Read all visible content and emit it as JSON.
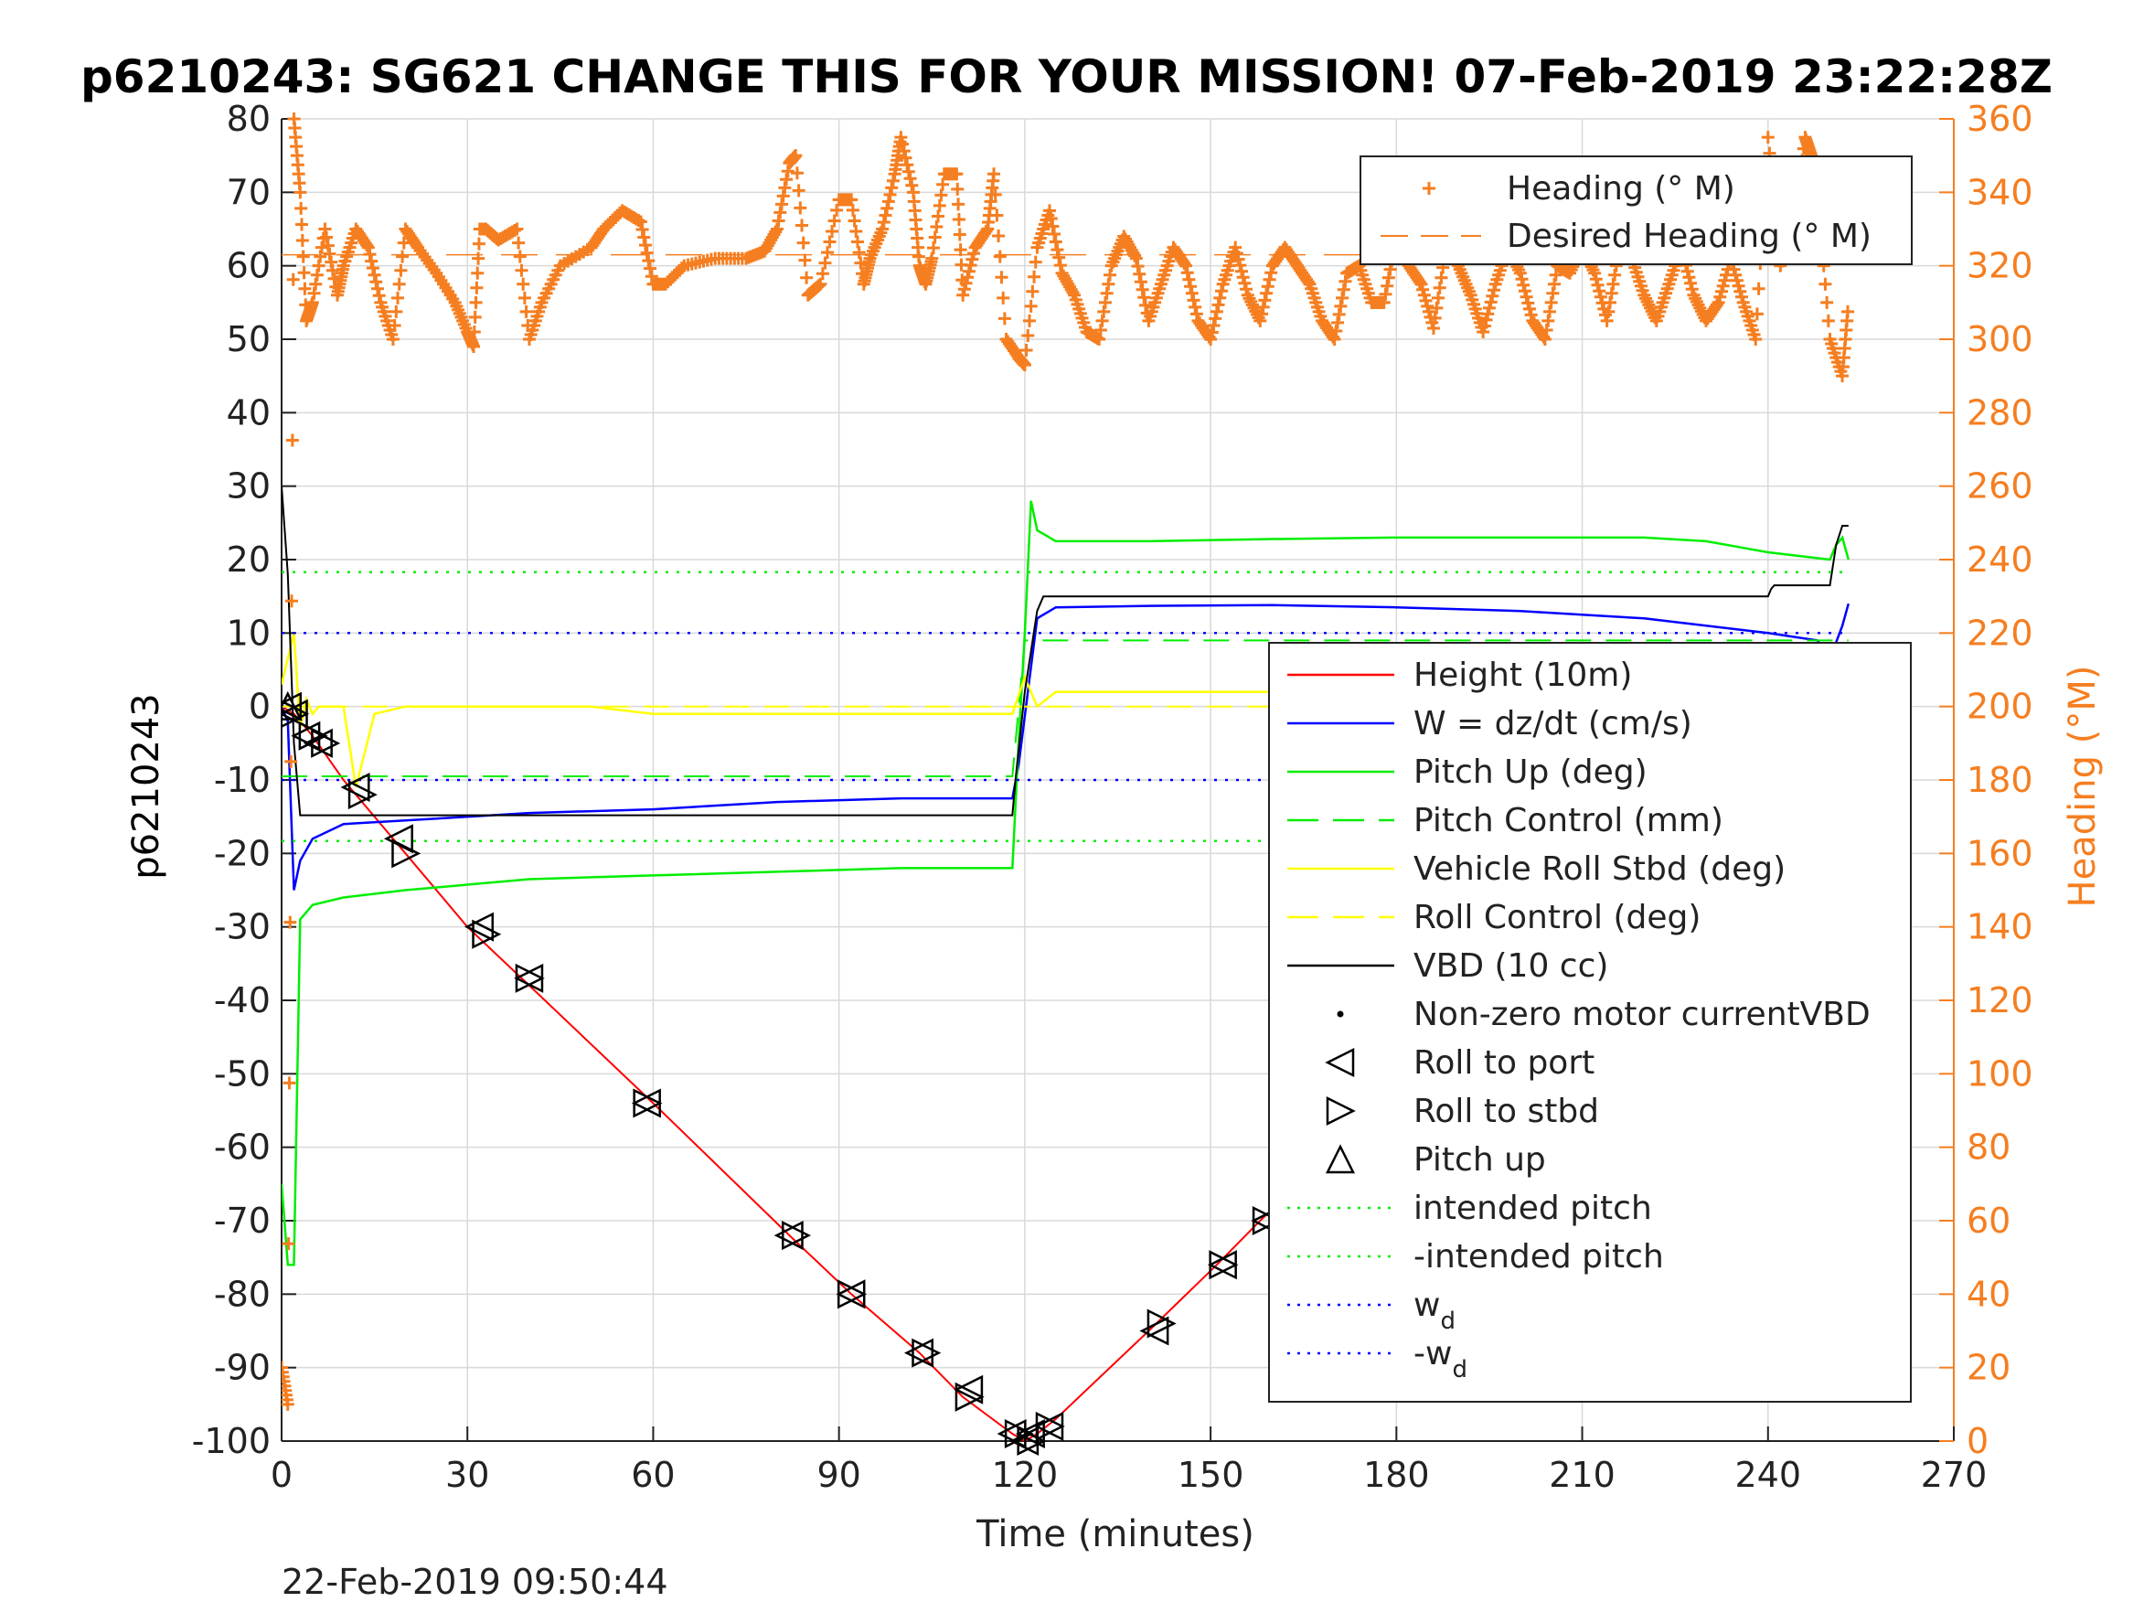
{
  "title": "p6210243: SG621 CHANGE THIS FOR YOUR MISSION! 07-Feb-2019 23:22:28Z",
  "timestamp": "22-Feb-2019 09:50:44",
  "colors": {
    "height": "#ff0000",
    "w": "#0000ff",
    "pitch": "#00ee00",
    "roll": "#ffff00",
    "vbd": "#000000",
    "heading": "#f57e20",
    "grid": "#d9d9d9",
    "markers": "#000000"
  },
  "chart_data": {
    "type": "line",
    "title": "p6210243: SG621 CHANGE THIS FOR YOUR MISSION! 07-Feb-2019 23:22:28Z",
    "xlabel": "Time (minutes)",
    "ylabel": "p6210243",
    "ylabel_right": "Heading (°M)",
    "xlim": [
      0,
      270
    ],
    "ylim": [
      -100,
      80
    ],
    "ylim_right": [
      0,
      360
    ],
    "x_ticks": [
      "0",
      "30",
      "60",
      "90",
      "120",
      "150",
      "180",
      "210",
      "240",
      "270"
    ],
    "y_ticks": [
      "80",
      "70",
      "60",
      "50",
      "40",
      "30",
      "20",
      "10",
      "0",
      "-10",
      "-20",
      "-30",
      "-40",
      "-50",
      "-60",
      "-70",
      "-80",
      "-90",
      "-100"
    ],
    "y_ticks_right": [
      "360",
      "340",
      "320",
      "300",
      "280",
      "260",
      "240",
      "220",
      "200",
      "180",
      "160",
      "140",
      "120",
      "100",
      "80",
      "60",
      "40",
      "20",
      "0"
    ],
    "grid": true,
    "legend_heading": {
      "placement": "top-right",
      "entries": [
        {
          "label": "Heading (° M)",
          "style": "plus"
        },
        {
          "label": "Desired Heading (° M)",
          "style": "dashed"
        }
      ]
    },
    "legend_main": {
      "placement": "right",
      "entries": [
        {
          "label": "Height (10m)",
          "style": "solid",
          "color": "#ff0000"
        },
        {
          "label": "W = dz/dt (cm/s)",
          "style": "solid",
          "color": "#0000ff"
        },
        {
          "label": "Pitch Up (deg)",
          "style": "solid",
          "color": "#00ee00"
        },
        {
          "label": "Pitch Control (mm)",
          "style": "dashed",
          "color": "#00ee00"
        },
        {
          "label": "Vehicle Roll Stbd (deg)",
          "style": "solid",
          "color": "#ffff00"
        },
        {
          "label": "Roll Control (deg)",
          "style": "dashed",
          "color": "#ffff00"
        },
        {
          "label": "VBD (10 cc)",
          "style": "solid",
          "color": "#000000"
        },
        {
          "label": "Non-zero motor currentVBD",
          "style": "dot",
          "color": "#000000"
        },
        {
          "label": "Roll to port",
          "style": "tri-left",
          "color": "#000000"
        },
        {
          "label": "Roll to stbd",
          "style": "tri-right",
          "color": "#000000"
        },
        {
          "label": "Pitch up",
          "style": "tri-up",
          "color": "#000000"
        },
        {
          "label": "intended pitch",
          "style": "dotted",
          "color": "#00ee00"
        },
        {
          "label": "-intended pitch",
          "style": "dotted",
          "color": "#00ee00"
        },
        {
          "label": "w",
          "sub": "d",
          "style": "dotted",
          "color": "#0000ff"
        },
        {
          "label": "-w",
          "sub": "d",
          "style": "dotted",
          "color": "#0000ff"
        }
      ]
    },
    "series": [
      {
        "name": "Height (10m)",
        "axis": "left",
        "x": [
          0,
          2,
          5,
          10,
          20,
          30,
          40,
          60,
          82,
          92,
          103,
          110,
          118,
          120,
          122,
          125,
          140,
          151,
          158,
          168,
          180,
          187,
          198,
          210,
          225,
          232,
          238,
          243,
          248,
          253
        ],
        "y": [
          0,
          -1,
          -4,
          -10,
          -20,
          -30,
          -38,
          -54,
          -72,
          -80,
          -88,
          -94,
          -99,
          -100,
          -99,
          -97,
          -85,
          -76,
          -70,
          -62,
          -53,
          -47,
          -38,
          -28,
          -18,
          -13,
          -8,
          -5,
          -2,
          0
        ]
      },
      {
        "name": "W = dz/dt (cm/s)",
        "axis": "left",
        "x": [
          0,
          1,
          2,
          3,
          5,
          10,
          20,
          30,
          40,
          60,
          80,
          100,
          118,
          119,
          122,
          125,
          140,
          160,
          180,
          200,
          220,
          240,
          248,
          250,
          252,
          253
        ],
        "y": [
          0,
          -2,
          -25,
          -21,
          -18,
          -16,
          -15.5,
          -15,
          -14.5,
          -14,
          -13,
          -12.5,
          -12.5,
          -8,
          12,
          13.5,
          13.7,
          13.8,
          13.5,
          13,
          12,
          10,
          9,
          6.5,
          11,
          14
        ]
      },
      {
        "name": "Pitch Up (deg)",
        "axis": "left",
        "x": [
          0,
          1,
          2,
          3,
          5,
          10,
          20,
          40,
          60,
          80,
          100,
          118,
          119,
          120,
          121,
          122,
          125,
          140,
          160,
          180,
          200,
          220,
          230,
          240,
          250,
          251,
          252,
          253
        ],
        "y": [
          -65,
          -76,
          -76,
          -29,
          -27,
          -26,
          -25,
          -23.5,
          -23,
          -22.5,
          -22,
          -22,
          -5,
          10,
          28,
          24,
          22.5,
          22.5,
          22.8,
          23,
          23,
          23,
          22.5,
          21,
          20,
          22,
          23,
          20
        ]
      },
      {
        "name": "Pitch Control (mm)",
        "axis": "left",
        "x": [
          0,
          3,
          118,
          120,
          123,
          253
        ],
        "y": [
          -9.5,
          -9.5,
          -9.5,
          9,
          9,
          9
        ]
      },
      {
        "name": "Vehicle Roll Stbd (deg)",
        "axis": "left",
        "x": [
          0,
          2,
          3,
          4,
          5,
          6,
          8,
          10,
          12,
          15,
          20,
          30,
          40,
          50,
          60,
          70,
          80,
          90,
          100,
          110,
          118,
          120,
          122,
          125,
          140,
          160,
          180,
          200,
          220,
          240,
          250,
          253
        ],
        "y": [
          3,
          10,
          -3,
          1,
          -1,
          0,
          0,
          0,
          -11,
          -1,
          0,
          0,
          0,
          0,
          -1,
          -1,
          -1,
          -1,
          -1,
          -1,
          -1,
          4,
          0,
          2,
          2,
          2,
          2,
          2,
          2,
          2,
          2,
          2
        ]
      },
      {
        "name": "Roll Control (deg)",
        "axis": "left",
        "x": [
          0,
          5,
          10,
          60,
          118,
          120,
          125,
          250,
          251,
          253
        ],
        "y": [
          0,
          0,
          0,
          0,
          0,
          0,
          0,
          0,
          -11,
          0
        ]
      },
      {
        "name": "VBD (10 cc)",
        "axis": "left",
        "x": [
          0,
          1,
          2,
          3,
          50,
          118,
          118.5,
          120,
          122,
          123,
          240,
          240.5,
          241,
          250,
          251,
          252,
          253
        ],
        "y": [
          30,
          18,
          -5,
          -14.8,
          -14.8,
          -14.8,
          -10,
          2,
          13,
          15,
          15,
          16,
          16.5,
          16.5,
          22,
          24.6,
          24.6
        ]
      },
      {
        "name": "intended pitch",
        "axis": "left",
        "x": [
          0,
          253
        ],
        "y": [
          18.3,
          18.3
        ]
      },
      {
        "name": "-intended pitch",
        "axis": "left",
        "x": [
          0,
          253
        ],
        "y": [
          -18.3,
          -18.3
        ]
      },
      {
        "name": "w",
        "axis": "left",
        "x": [
          0,
          253
        ],
        "y": [
          10,
          10
        ]
      },
      {
        "name": "-w",
        "axis": "left",
        "x": [
          0,
          253
        ],
        "y": [
          -10,
          -10
        ]
      },
      {
        "name": "Desired Heading (° M)",
        "axis": "right",
        "x": [
          0,
          253
        ],
        "y": [
          323,
          323
        ]
      },
      {
        "name": "Heading (° M)",
        "axis": "right",
        "x": [
          0,
          1,
          2,
          3,
          4,
          5,
          7,
          9,
          10,
          12,
          14,
          16,
          18,
          20,
          22,
          25,
          28,
          30,
          31,
          32,
          33,
          35,
          38,
          40,
          42,
          45,
          50,
          52,
          55,
          58,
          60,
          62,
          65,
          70,
          75,
          78,
          80,
          82,
          83,
          85,
          87,
          90,
          92,
          94,
          95,
          97,
          99,
          100,
          102,
          103,
          104,
          105,
          107,
          109,
          110,
          112,
          114,
          115,
          117,
          119,
          120,
          122,
          124,
          126,
          128,
          130,
          132,
          134,
          136,
          138,
          140,
          142,
          144,
          146,
          148,
          150,
          152,
          154,
          156,
          158,
          160,
          162,
          164,
          166,
          168,
          170,
          172,
          174,
          176,
          178,
          180,
          182,
          184,
          186,
          188,
          190,
          192,
          194,
          196,
          198,
          200,
          202,
          204,
          206,
          208,
          210,
          212,
          214,
          216,
          218,
          220,
          222,
          224,
          226,
          228,
          230,
          232,
          234,
          236,
          238,
          240,
          242,
          244,
          246,
          247,
          248,
          250,
          252,
          253
        ],
        "y": [
          20,
          10,
          360,
          340,
          305,
          310,
          330,
          312,
          320,
          330,
          325,
          310,
          300,
          330,
          325,
          318,
          310,
          302,
          298,
          330,
          330,
          327,
          330,
          300,
          310,
          320,
          325,
          330,
          335,
          332,
          315,
          315,
          320,
          322,
          322,
          324,
          330,
          348,
          350,
          312,
          315,
          338,
          338,
          315,
          322,
          330,
          345,
          355,
          340,
          320,
          315,
          322,
          345,
          345,
          312,
          325,
          330,
          345,
          300,
          295,
          293,
          325,
          335,
          318,
          312,
          302,
          300,
          320,
          328,
          322,
          305,
          315,
          325,
          320,
          305,
          300,
          315,
          325,
          312,
          305,
          320,
          325,
          320,
          315,
          305,
          300,
          318,
          320,
          310,
          310,
          328,
          320,
          315,
          303,
          325,
          320,
          312,
          302,
          315,
          325,
          318,
          305,
          300,
          320,
          318,
          325,
          318,
          305,
          325,
          322,
          312,
          305,
          315,
          325,
          312,
          305,
          310,
          322,
          310,
          300,
          355,
          320,
          330,
          355,
          350,
          340,
          300,
          290,
          310
        ]
      }
    ],
    "markers": {
      "roll_to_port": {
        "x": [
          1,
          2,
          4,
          6,
          12,
          19,
          32,
          40,
          59,
          82,
          92,
          103,
          111,
          118,
          120,
          121,
          124,
          141,
          152,
          159,
          169,
          181,
          188,
          198,
          211,
          225,
          231,
          235,
          239,
          244,
          249,
          253
        ],
        "y": [
          0,
          -1,
          -4,
          -5,
          -11,
          -18,
          -30,
          -37,
          -54,
          -72,
          -80,
          -88,
          -93,
          -99,
          -100,
          -99,
          -98,
          -85,
          -76,
          -70,
          -62,
          -53,
          -47,
          -39,
          -28,
          -18,
          -14,
          -11,
          -9,
          -6,
          -3,
          -1
        ]
      },
      "roll_to_stbd": {
        "x": [
          2,
          5,
          7,
          13,
          20,
          33,
          40,
          59,
          83,
          92,
          104,
          111,
          119,
          121,
          124,
          142,
          152,
          159,
          170,
          181,
          188,
          199,
          212,
          226,
          232,
          236,
          240,
          245,
          250,
          254
        ],
        "y": [
          -1,
          -4,
          -5,
          -12,
          -20,
          -31,
          -37,
          -54,
          -72,
          -80,
          -88,
          -94,
          -99,
          -100,
          -98,
          -84,
          -76,
          -70,
          -62,
          -53,
          -47,
          -38,
          -28,
          -18,
          -14,
          -10,
          -8,
          -5,
          -2,
          0
        ]
      },
      "pitch_up": {
        "x": [
          1,
          171
        ],
        "y": [
          0,
          -61
        ]
      }
    }
  }
}
